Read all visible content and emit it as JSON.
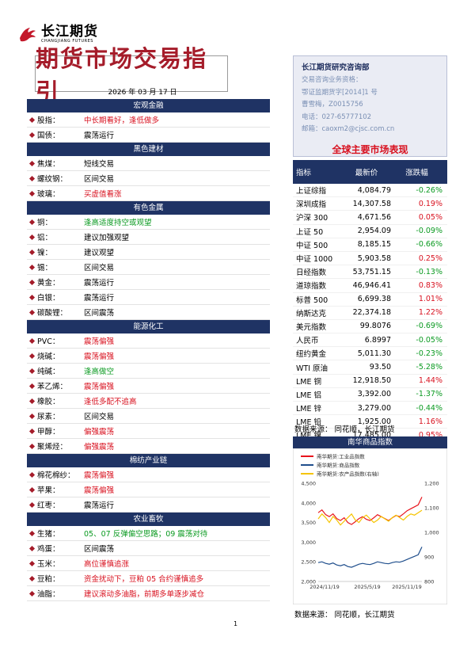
{
  "header": {
    "logo_cn": "长江期货",
    "logo_en": "CHANGJIANG FUTURES",
    "report_title": "期货市场交易指引",
    "date": "2026 年 03 月 17 日"
  },
  "info": {
    "dept": "长江期货研究咨询部",
    "lines": [
      "交易咨询业务资格：",
      "鄂证监期货字[2014]1 号",
      "曹雪梅，Z0015756",
      "电话：027-65777102",
      "邮箱：caoxm2@cjsc.com.cn"
    ]
  },
  "sections": [
    {
      "title": "宏观金融",
      "rows": [
        {
          "name": "股指：",
          "view": "中长期看好，逢低做多",
          "color": "red"
        },
        {
          "name": "国债：",
          "view": "震荡运行",
          "color": "black"
        }
      ]
    },
    {
      "title": "黑色建材",
      "rows": [
        {
          "name": "焦煤：",
          "view": "短线交易",
          "color": "black"
        },
        {
          "name": "螺纹钢：",
          "view": "区间交易",
          "color": "black"
        },
        {
          "name": "玻璃：",
          "view": "买虚值看涨",
          "color": "red"
        }
      ]
    },
    {
      "title": "有色金属",
      "rows": [
        {
          "name": "铜：",
          "view": "逢高适度持空或观望",
          "color": "green"
        },
        {
          "name": "铝：",
          "view": "建议加强观望",
          "color": "black"
        },
        {
          "name": "镍：",
          "view": "建议观望",
          "color": "black"
        },
        {
          "name": "锡：",
          "view": "区间交易",
          "color": "black"
        },
        {
          "name": "黄金：",
          "view": "震荡运行",
          "color": "black"
        },
        {
          "name": "白银：",
          "view": "震荡运行",
          "color": "black"
        },
        {
          "name": "碳酸锂：",
          "view": "区间震荡",
          "color": "black"
        }
      ]
    },
    {
      "title": "能源化工",
      "rows": [
        {
          "name": "PVC：",
          "view": "震荡偏强",
          "color": "red"
        },
        {
          "name": "烧碱：",
          "view": "震荡偏强",
          "color": "red"
        },
        {
          "name": "纯碱：",
          "view": "逢高做空",
          "color": "green"
        },
        {
          "name": "苯乙烯：",
          "view": "震荡偏强",
          "color": "red"
        },
        {
          "name": "橡胶：",
          "view": "逢低多配不追高",
          "color": "red"
        },
        {
          "name": "尿素：",
          "view": "区间交易",
          "color": "black"
        },
        {
          "name": "甲醇：",
          "view": "偏强震荡",
          "color": "red"
        },
        {
          "name": "聚烯烃：",
          "view": "偏强震荡",
          "color": "red"
        }
      ]
    },
    {
      "title": "棉纺产业链",
      "rows": [
        {
          "name": "棉花棉纱：",
          "view": "震荡偏强",
          "color": "red"
        },
        {
          "name": "苹果：",
          "view": "震荡偏强",
          "color": "red"
        },
        {
          "name": "红枣：",
          "view": "震荡运行",
          "color": "black"
        }
      ]
    },
    {
      "title": "农业畜牧",
      "rows": [
        {
          "name": "生猪：",
          "view": "05、07 反弹偏空思路；09 震荡对待",
          "color": "green"
        },
        {
          "name": "鸡蛋：",
          "view": "区间震荡",
          "color": "black"
        },
        {
          "name": "玉米：",
          "view": "高位谨慎追涨",
          "color": "red"
        },
        {
          "name": "豆粕：",
          "view": "资金扰动下，豆粕 05 合约谨慎追多",
          "color": "red"
        },
        {
          "name": "油脂：",
          "view": "建议滚动多油脂，前期多单逐步减仓",
          "color": "red"
        }
      ]
    }
  ],
  "market": {
    "title": "全球主要市场表现",
    "headers": [
      "指标",
      "最新价",
      "涨跌幅"
    ],
    "rows": [
      {
        "name": "上证综指",
        "price": "4,084.79",
        "chg": "-0.26%",
        "color": "green"
      },
      {
        "name": "深圳成指",
        "price": "14,307.58",
        "chg": "0.19%",
        "color": "red"
      },
      {
        "name": "沪深 300",
        "price": "4,671.56",
        "chg": "0.05%",
        "color": "red"
      },
      {
        "name": "上证 50",
        "price": "2,954.09",
        "chg": "-0.09%",
        "color": "green"
      },
      {
        "name": "中证 500",
        "price": "8,185.15",
        "chg": "-0.66%",
        "color": "green"
      },
      {
        "name": "中证 1000",
        "price": "5,903.58",
        "chg": "0.25%",
        "color": "red"
      },
      {
        "name": "日经指数",
        "price": "53,751.15",
        "chg": "-0.13%",
        "color": "green"
      },
      {
        "name": "道琼指数",
        "price": "46,946.41",
        "chg": "0.83%",
        "color": "red"
      },
      {
        "name": "标普 500",
        "price": "6,699.38",
        "chg": "1.01%",
        "color": "red"
      },
      {
        "name": "纳斯达克",
        "price": "22,374.18",
        "chg": "1.22%",
        "color": "red"
      },
      {
        "name": "美元指数",
        "price": "99.8076",
        "chg": "-0.69%",
        "color": "green"
      },
      {
        "name": "人民币",
        "price": "6.8997",
        "chg": "-0.05%",
        "color": "green"
      },
      {
        "name": "纽约黄金",
        "price": "5,011.30",
        "chg": "-0.23%",
        "color": "green"
      },
      {
        "name": "WTI 原油",
        "price": "93.50",
        "chg": "-5.28%",
        "color": "green"
      },
      {
        "name": "LME 铜",
        "price": "12,918.50",
        "chg": "1.44%",
        "color": "red"
      },
      {
        "name": "LME 铝",
        "price": "3,392.00",
        "chg": "-1.37%",
        "color": "green"
      },
      {
        "name": "LME 锌",
        "price": "3,279.00",
        "chg": "-0.44%",
        "color": "green"
      },
      {
        "name": "LME 铅",
        "price": "1,925.00",
        "chg": "1.16%",
        "color": "red"
      },
      {
        "name": "LME 镍",
        "price": "17,485.00",
        "chg": "0.95%",
        "color": "red"
      }
    ],
    "source": "数据来源： 同花顺，长江期货"
  },
  "chart_data": {
    "type": "line",
    "title": "南华商品指数",
    "x_ticks": [
      "2024/11/19",
      "2025/5/19",
      "2025/11/19"
    ],
    "y_left": {
      "min": 2000,
      "max": 4500,
      "ticks": [
        "2,000",
        "2,500",
        "3,000",
        "3,500",
        "4,000",
        "4,500"
      ]
    },
    "y_right": {
      "min": 800,
      "max": 1200,
      "ticks": [
        "800",
        "900",
        "1,000",
        "1,100",
        "1,200"
      ]
    },
    "series": [
      {
        "name": "南华期货:工业品指数",
        "color": "#e8141c",
        "axis": "left",
        "values": [
          3750,
          3820,
          3700,
          3650,
          3720,
          3600,
          3550,
          3620,
          3500,
          3450,
          3520,
          3600,
          3650,
          3580,
          3550,
          3620,
          3700,
          3650,
          3600,
          3550,
          3620,
          3680,
          3650,
          3720,
          3800,
          3850,
          3900,
          3950,
          4150
        ]
      },
      {
        "name": "南华期货:商品指数",
        "color": "#1f4e8c",
        "axis": "left",
        "values": [
          2480,
          2500,
          2460,
          2440,
          2470,
          2420,
          2400,
          2430,
          2380,
          2360,
          2400,
          2440,
          2460,
          2440,
          2430,
          2460,
          2500,
          2480,
          2460,
          2450,
          2480,
          2500,
          2490,
          2520,
          2560,
          2600,
          2640,
          2680,
          2880
        ]
      },
      {
        "name": "南华期货:农产品指数(右轴)",
        "color": "#f5c400",
        "axis": "right",
        "values": [
          1055,
          1075,
          1060,
          1040,
          1065,
          1050,
          1030,
          1045,
          1060,
          1075,
          1050,
          1040,
          1060,
          1070,
          1055,
          1040,
          1050,
          1065,
          1055,
          1045,
          1060,
          1070,
          1060,
          1050,
          1065,
          1075,
          1070,
          1080,
          1090
        ]
      }
    ],
    "source": "数据来源： 同花顺，长江期货"
  },
  "page_number": "1"
}
